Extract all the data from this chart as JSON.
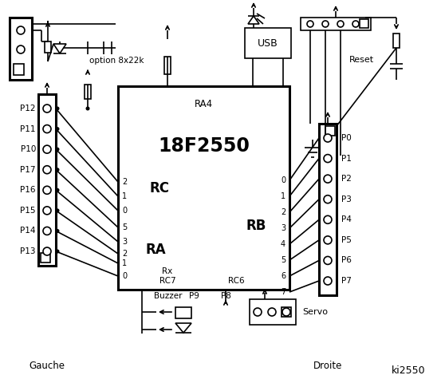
{
  "title": "ki2550",
  "bg_color": "#ffffff",
  "chip_label": "18F2550",
  "ra4_label": "RA4",
  "rc_label": "RC",
  "ra_label": "RA",
  "rb_label": "RB",
  "rc_pins": [
    "2",
    "1",
    "0"
  ],
  "ra_pins": [
    "5",
    "3",
    "2",
    "1",
    "0"
  ],
  "rb_pins": [
    "0",
    "1",
    "2",
    "3",
    "4",
    "5",
    "6",
    "7"
  ],
  "left_labels": [
    "P12",
    "P11",
    "P10",
    "P17",
    "P16",
    "P15",
    "P14",
    "P13"
  ],
  "right_labels": [
    "P0",
    "P1",
    "P2",
    "P3",
    "P4",
    "P5",
    "P6",
    "P7"
  ],
  "gauche_label": "Gauche",
  "droite_label": "Droite",
  "option_label": "option 8x22k",
  "usb_label": "USB",
  "reset_label": "Reset",
  "rc6_label": "RC6",
  "rc7_label": "Rx",
  "rc7b_label": "RC7",
  "buzzer_label": "Buzzer",
  "p9_label": "P9",
  "p8_label": "P8",
  "servo_label": "Servo",
  "line_color": "#000000"
}
